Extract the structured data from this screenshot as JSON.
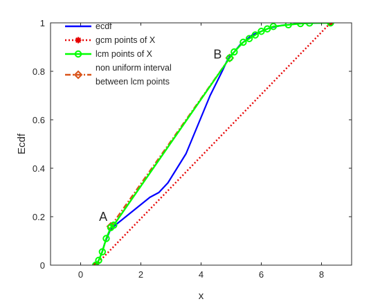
{
  "chart_data": {
    "type": "line",
    "title": "",
    "xlabel": "x",
    "ylabel": "Ecdf",
    "xlim": [
      -1,
      9
    ],
    "ylim": [
      0,
      1
    ],
    "xticks": [
      0,
      2,
      4,
      6,
      8
    ],
    "yticks": [
      0,
      0.2,
      0.4,
      0.6,
      0.8,
      1
    ],
    "xtick_labels": [
      "0",
      "2",
      "4",
      "6",
      "8"
    ],
    "ytick_labels": [
      "0",
      "0.2",
      "0.4",
      "0.6",
      "0.8",
      "1"
    ],
    "grid": false,
    "legend_position": "top-left",
    "series": [
      {
        "name": "ecdf",
        "color": "#0000ff",
        "line_style": "solid",
        "marker": "none",
        "x": [
          0.5,
          0.6,
          0.7,
          0.8,
          0.9,
          1.0,
          1.2,
          1.5,
          1.8,
          2.0,
          2.3,
          2.6,
          2.9,
          3.1,
          3.3,
          3.5,
          3.7,
          3.9,
          4.1,
          4.3,
          4.5,
          4.7,
          4.85,
          4.95,
          5.1,
          5.3,
          5.5,
          5.7,
          5.9,
          6.1,
          6.3,
          6.5,
          6.7,
          6.9,
          7.1,
          7.3,
          7.5,
          7.8,
          8.1,
          8.3
        ],
        "y": [
          0.0,
          0.02,
          0.05,
          0.09,
          0.12,
          0.15,
          0.17,
          0.2,
          0.23,
          0.25,
          0.28,
          0.3,
          0.34,
          0.38,
          0.42,
          0.46,
          0.52,
          0.58,
          0.64,
          0.7,
          0.75,
          0.8,
          0.84,
          0.86,
          0.88,
          0.91,
          0.93,
          0.95,
          0.96,
          0.97,
          0.98,
          0.985,
          0.99,
          0.992,
          0.995,
          0.997,
          0.998,
          0.999,
          1.0,
          1.0
        ]
      },
      {
        "name": "gcm points of X",
        "color": "#e60000",
        "line_style": "dotted",
        "marker": "asterisk",
        "x": [
          0.5,
          8.3
        ],
        "y": [
          0.0,
          1.0
        ]
      },
      {
        "name": "lcm points of X",
        "color": "#00ff00",
        "line_style": "solid",
        "marker": "circle",
        "x": [
          0.5,
          0.6,
          0.72,
          0.85,
          1.0,
          1.1,
          4.95,
          5.1,
          5.4,
          5.6,
          5.8,
          6.0,
          6.2,
          6.4,
          6.9,
          7.3,
          7.6,
          8.3
        ],
        "y": [
          0.0,
          0.02,
          0.055,
          0.11,
          0.155,
          0.165,
          0.855,
          0.88,
          0.92,
          0.935,
          0.95,
          0.965,
          0.975,
          0.985,
          0.992,
          0.997,
          0.999,
          1.0
        ]
      },
      {
        "name": "non uniform interval between lcm points",
        "legend_lines": [
          "non uniform interval",
          "between lcm points"
        ],
        "color": "#d95319",
        "line_style": "dash-dot",
        "marker": "diamond",
        "x": [
          1.0,
          4.95
        ],
        "y": [
          0.16,
          0.855
        ]
      }
    ],
    "annotations": [
      {
        "text": "A",
        "x": 0.75,
        "y": 0.2
      },
      {
        "text": "B",
        "x": 4.55,
        "y": 0.87
      }
    ]
  }
}
